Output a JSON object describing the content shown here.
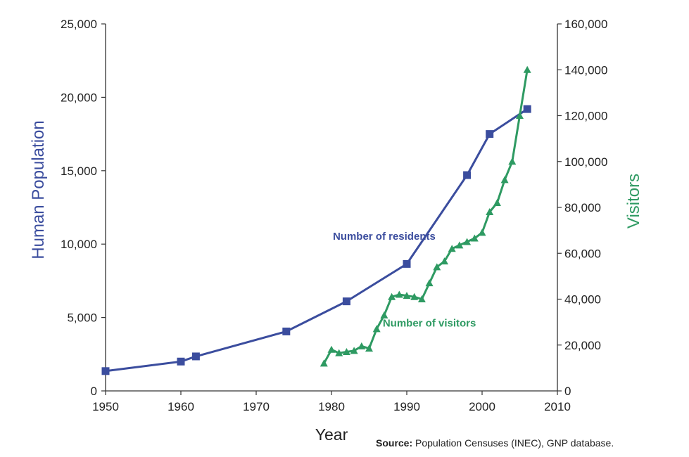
{
  "chart_data": {
    "type": "line",
    "title": "",
    "xlabel": "Year",
    "ylabel": "Human Population",
    "y2label": "Visitors",
    "xlim": [
      1950,
      2010
    ],
    "ylim": [
      0,
      25000
    ],
    "y2lim": [
      0,
      160000
    ],
    "x_ticks": [
      "1950",
      "1960",
      "1970",
      "1980",
      "1990",
      "2000",
      "2010"
    ],
    "y_ticks": [
      "0",
      "5,000",
      "10,000",
      "15,000",
      "20,000",
      "25,000"
    ],
    "y2_ticks": [
      "0",
      "20,000",
      "40,000",
      "60,000",
      "80,000",
      "100,000",
      "120,000",
      "140,000",
      "160,000"
    ],
    "grid": false,
    "colors": {
      "residents": "#3b4d9e",
      "visitors": "#2e9a62",
      "axis": "#333333"
    },
    "series": [
      {
        "name": "Number of residents",
        "axis": "left",
        "marker": "square",
        "x": [
          1950,
          1960,
          1962,
          1974,
          1982,
          1990,
          1998,
          2001,
          2006
        ],
        "y": [
          1350,
          2000,
          2350,
          4050,
          6100,
          8650,
          14700,
          17500,
          19200
        ]
      },
      {
        "name": "Number of visitors",
        "axis": "right",
        "marker": "triangle",
        "x": [
          1979,
          1980,
          1981,
          1982,
          1983,
          1984,
          1985,
          1986,
          1987,
          1988,
          1989,
          1990,
          1991,
          1992,
          1993,
          1994,
          1995,
          1996,
          1997,
          1998,
          1999,
          2000,
          2001,
          2002,
          2003,
          2004,
          2005,
          2006
        ],
        "y": [
          12000,
          18000,
          16500,
          17000,
          17500,
          19500,
          18500,
          27000,
          33000,
          41000,
          42000,
          41500,
          41000,
          40000,
          47000,
          54000,
          56500,
          62000,
          63500,
          65000,
          66500,
          69000,
          78000,
          82000,
          92000,
          100000,
          120000,
          140000
        ]
      }
    ],
    "annotations": [
      {
        "text": "Number of residents",
        "x": 1987,
        "y": 10300,
        "axis": "left",
        "series": 0
      },
      {
        "text": "Number of visitors",
        "x": 1993,
        "y": 28000,
        "axis": "right",
        "series": 1
      }
    ]
  },
  "source": {
    "label": "Source:",
    "text": " Population Censuses (INEC), GNP database."
  }
}
